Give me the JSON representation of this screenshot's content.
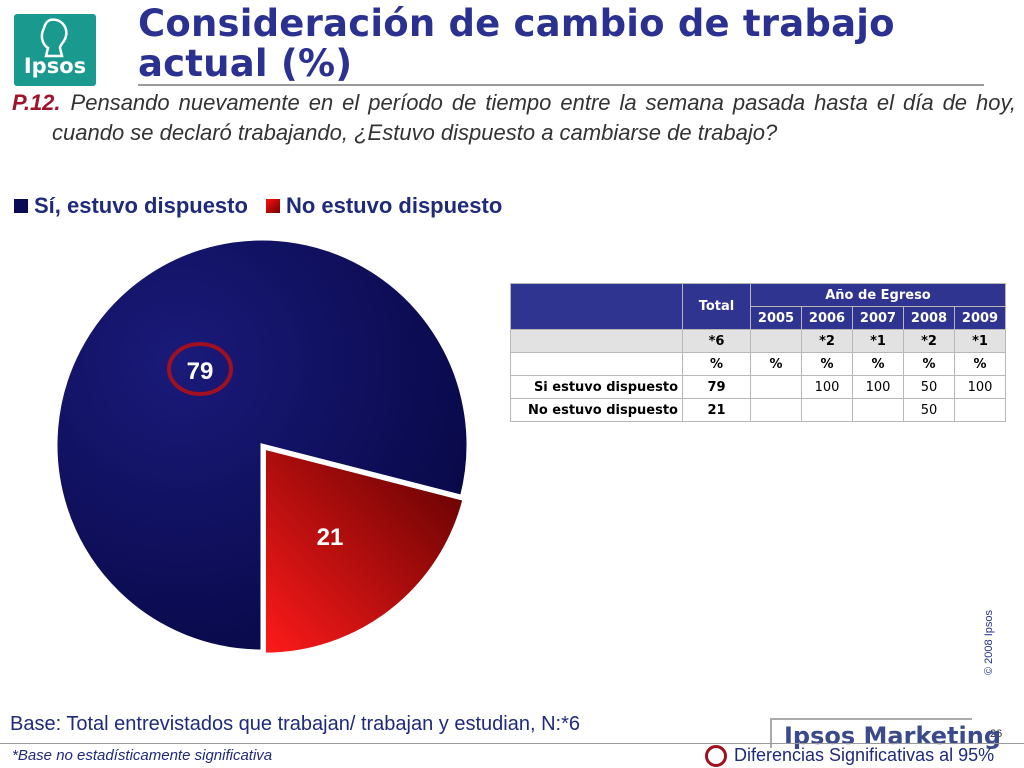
{
  "header": {
    "logo_text": "Ipsos",
    "title_line1": "Consideración de cambio de trabajo",
    "title_line2": "actual (%)"
  },
  "question": {
    "number": "P.12.",
    "text": "Pensando nuevamente en el período de tiempo entre la semana pasada hasta el día de hoy, cuando se declaró trabajando, ¿Estuvo dispuesto a cambiarse de trabajo?"
  },
  "legend": [
    {
      "label": "Sí, estuvo dispuesto",
      "color": "#0a0a55"
    },
    {
      "label": "No estuvo dispuesto",
      "color": "#e01010"
    }
  ],
  "chart_data": {
    "type": "pie",
    "categories": [
      "Sí, estuvo dispuesto",
      "No estuvo dispuesto"
    ],
    "values": [
      79,
      21
    ],
    "data_labels": [
      "79",
      "21"
    ],
    "colors": [
      "#0a0a55",
      "#e01010"
    ],
    "highlighted": [
      "79"
    ],
    "exploded": [
      "No estuvo dispuesto"
    ]
  },
  "table": {
    "total_label": "Total",
    "group_label": "Año de Egreso",
    "years": [
      "2005",
      "2006",
      "2007",
      "2008",
      "2009"
    ],
    "base_row": {
      "total": "*6",
      "years": [
        "",
        "*2",
        "*1",
        "*2",
        "*1"
      ]
    },
    "pct_row": {
      "total": "%",
      "years": [
        "%",
        "%",
        "%",
        "%",
        "%"
      ]
    },
    "rows": [
      {
        "label": "Si estuvo dispuesto",
        "total": "79",
        "years": [
          "",
          "100",
          "100",
          "50",
          "100"
        ]
      },
      {
        "label": "No estuvo dispuesto",
        "total": "21",
        "years": [
          "",
          "",
          "",
          "50",
          ""
        ]
      }
    ]
  },
  "footer": {
    "copyright": "© 2008 Ipsos",
    "base": "Base: Total entrevistados que trabajan/ trabajan y estudian, N:*6",
    "page": "26",
    "brand": "Ipsos Marketing",
    "footnote": "*Base no estadísticamente significativa",
    "significance": "Diferencias Significativas al 95%"
  }
}
